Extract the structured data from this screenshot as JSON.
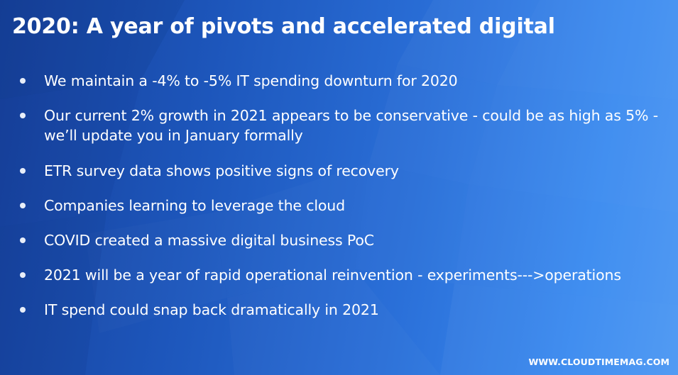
{
  "slide": {
    "title": "2020: A year of pivots and accelerated digital",
    "bullets": [
      "We maintain a -4% to -5% IT spending downturn for 2020",
      "Our current 2% growth in 2021 appears to be conservative - could be as high as 5% - we’ll update you in January formally",
      "ETR survey data shows positive signs of recovery",
      "Companies learning to leverage the cloud",
      "COVID created a massive digital business PoC",
      "2021 will be a year of rapid operational reinvention - experiments--->operations",
      "IT spend could snap back dramatically in 2021"
    ],
    "watermark": "WWW.CLOUDTIMEMAG.COM"
  },
  "colors": {
    "background_dark": "#16409a",
    "background_light": "#4b97f3",
    "text": "#ffffff"
  }
}
